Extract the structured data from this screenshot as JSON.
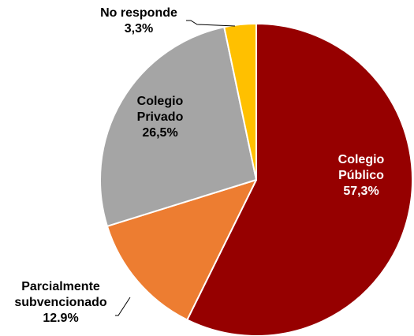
{
  "chart_data": {
    "type": "pie",
    "title": "",
    "legend": "none",
    "start_angle_deg": 0,
    "direction": "clockwise",
    "slices": [
      {
        "key": "publico",
        "label_lines": [
          "Colegio",
          "Público",
          "57,3%"
        ],
        "value": 57.3,
        "color": "#960000",
        "label_color": "#ffffff"
      },
      {
        "key": "parcial",
        "label_lines": [
          "Parcialmente",
          "subvencionado",
          "12.9%"
        ],
        "value": 12.9,
        "color": "#ed7d31",
        "label_color": "#000000"
      },
      {
        "key": "privado",
        "label_lines": [
          "Colegio",
          "Privado",
          "26,5%"
        ],
        "value": 26.5,
        "color": "#a5a5a5",
        "label_color": "#000000"
      },
      {
        "key": "noresponde",
        "label_lines": [
          "No responde",
          "3,3%"
        ],
        "value": 3.3,
        "color": "#ffc000",
        "label_color": "#000000"
      }
    ]
  }
}
